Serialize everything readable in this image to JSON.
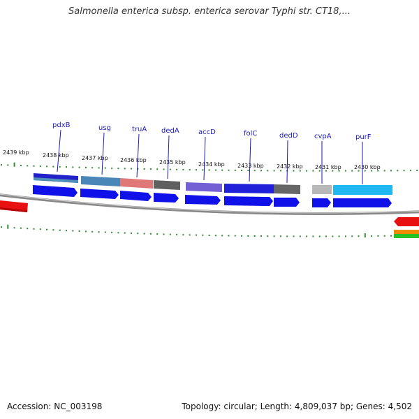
{
  "title": "Salmonella enterica subsp. enterica serovar Typhi str. CT18,...",
  "accession": "Accession: NC_003198",
  "summary": "Topology: circular; Length: 4,809,037 bp; Genes: 4,502",
  "colors": {
    "backbone": "#888888",
    "tick": "#2e8b2e",
    "label": "#1a1ab8",
    "cds_forward": "#1010e8"
  },
  "ruler": {
    "labels": [
      {
        "text": "2439 kbp",
        "kb": 2439
      },
      {
        "text": "2438 kbp",
        "kb": 2438
      },
      {
        "text": "2437 kbp",
        "kb": 2437
      },
      {
        "text": "2436 kbp",
        "kb": 2436
      },
      {
        "text": "2435 kbp",
        "kb": 2435
      },
      {
        "text": "2434 kbp",
        "kb": 2434
      },
      {
        "text": "2433 kbp",
        "kb": 2433
      },
      {
        "text": "2432 kbp",
        "kb": 2432
      },
      {
        "text": "2431 kbp",
        "kb": 2431
      },
      {
        "text": "2430 kbp",
        "kb": 2430
      }
    ]
  },
  "genes": [
    {
      "name": "pdxB"
    },
    {
      "name": "usg"
    },
    {
      "name": "truA"
    },
    {
      "name": "dedA"
    },
    {
      "name": "accD"
    },
    {
      "name": "folC"
    },
    {
      "name": "dedD"
    },
    {
      "name": "cvpA"
    },
    {
      "name": "purF"
    }
  ]
}
